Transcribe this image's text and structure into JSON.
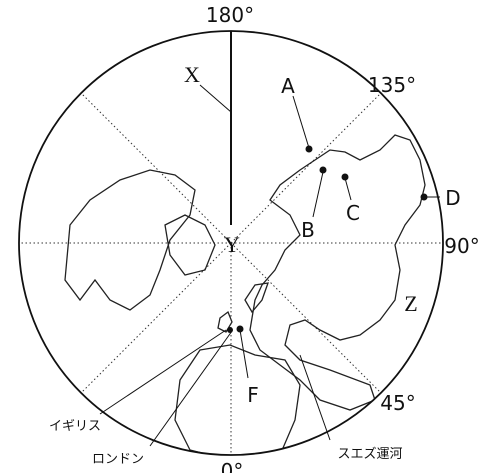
{
  "degree_labels": [
    "180°",
    "135°",
    "90°",
    "45°",
    "0°"
  ],
  "letters": {
    "X": "X",
    "Y": "Y",
    "Z": "Z",
    "A": "A",
    "B": "B",
    "C": "C",
    "D": "D",
    "F": "F"
  },
  "places": {
    "uk": "イギリス",
    "london": "ロンドン",
    "suez": "スエズ運河"
  }
}
